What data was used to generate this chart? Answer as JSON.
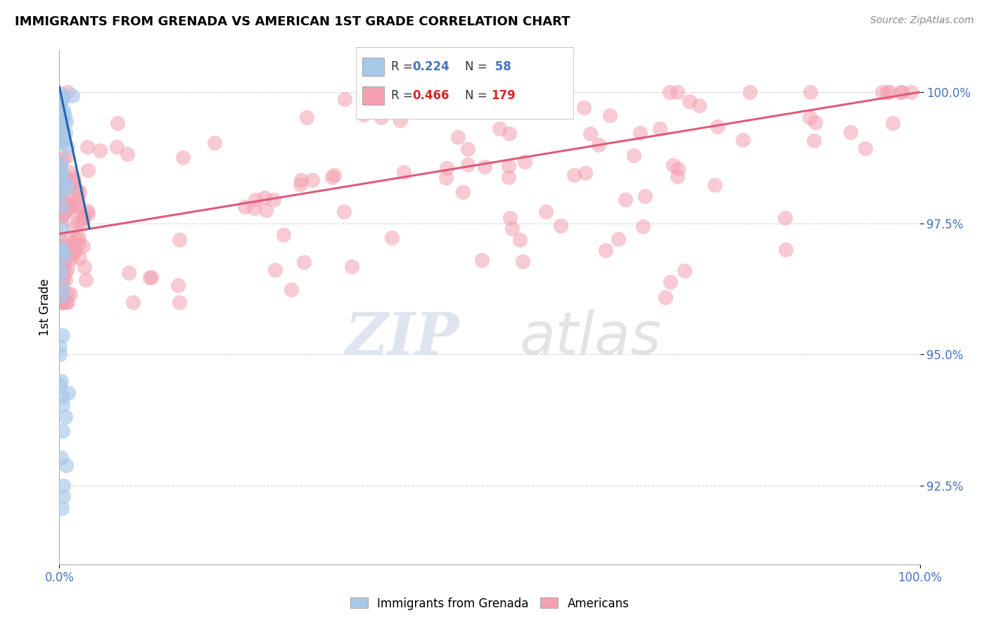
{
  "title": "IMMIGRANTS FROM GRENADA VS AMERICAN 1ST GRADE CORRELATION CHART",
  "source": "Source: ZipAtlas.com",
  "ylabel": "1st Grade",
  "blue_color": "#a8c8e8",
  "pink_color": "#f4a0b0",
  "blue_line_color": "#2166ac",
  "pink_line_color": "#e05a7a",
  "legend_blue_r": "0.224",
  "legend_blue_n": "58",
  "legend_pink_r": "0.466",
  "legend_pink_n": "179",
  "blue_trendline_x0": 0.0,
  "blue_trendline_y0": 1.001,
  "blue_trendline_x1": 0.035,
  "blue_trendline_y1": 0.974,
  "pink_trendline_x0": 0.0,
  "pink_trendline_y0": 0.973,
  "pink_trendline_x1": 1.0,
  "pink_trendline_y1": 1.0,
  "xmin": 0.0,
  "xmax": 1.0,
  "ymin": 0.91,
  "ymax": 1.008,
  "yticks": [
    0.925,
    0.95,
    0.975,
    1.0
  ],
  "ytick_labels": [
    "92.5%",
    "95.0%",
    "97.5%",
    "100.0%"
  ],
  "watermark_line1": "ZIP",
  "watermark_line2": "atlas",
  "grid_color": "#cccccc",
  "title_fontsize": 13,
  "tick_fontsize": 12
}
